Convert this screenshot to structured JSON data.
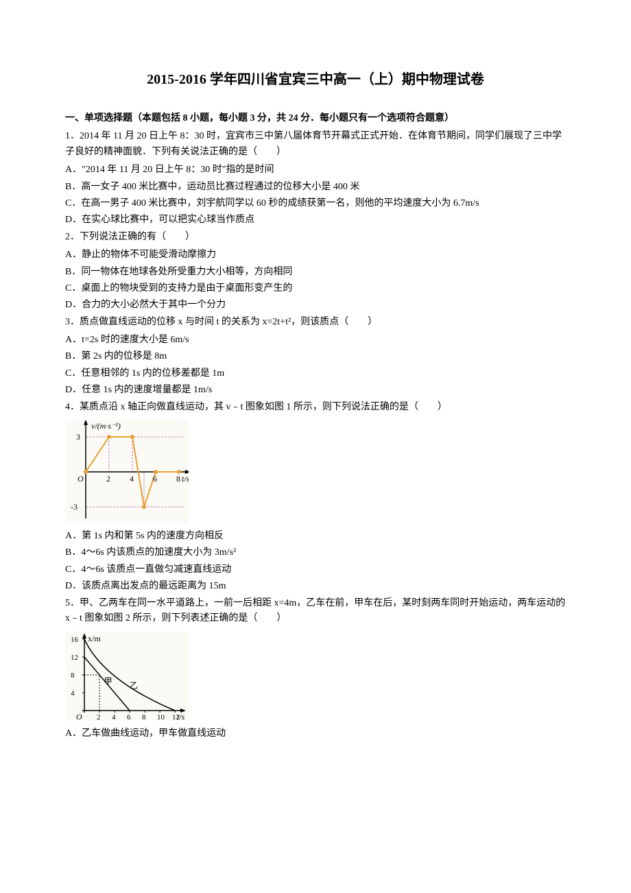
{
  "title": "2015-2016 学年四川省宜宾三中高一（上）期中物理试卷",
  "section1": {
    "header": "一、单项选择题（本题包括 8 小题，每小题 3 分，共 24 分．每小题只有一个选项符合题意）",
    "q1": {
      "text": "1．2014 年 11 月 20 日上午 8：30 时，宜宾市三中第八届体育节开幕式正式开始．在体育节期间，同学们展现了三中学子良好的精神面貌．下列有关说法正确的是（　　）",
      "a": "A．\"2014 年 11 月 20 日上午 8：30 时\"指的是时间",
      "b": "B．高一女子 400 米比赛中，运动员比赛过程通过的位移大小是 400 米",
      "c": "C．在高一男子 400 米比赛中，刘宇航同学以 60 秒的成绩获第一名，则他的平均速度大小为 6.7m/s",
      "d": "D．在实心球比赛中，可以把实心球当作质点"
    },
    "q2": {
      "text": "2．下列说法正确的有（　　）",
      "a": "A．静止的物体不可能受滑动摩擦力",
      "b": "B．同一物体在地球各处所受重力大小相等，方向相同",
      "c": "C．桌面上的物块受到的支持力是由于桌面形变产生的",
      "d": "D．合力的大小必然大于其中一个分力"
    },
    "q3": {
      "text": "3．质点做直线运动的位移 x 与时间 t 的关系为 x=2t+t²，则该质点（　　）",
      "a": "A．t=2s 时的速度大小是 6m/s",
      "b": "B．第 2s 内的位移是 8m",
      "c": "C．任意相邻的 1s 内的位移差都是 1m",
      "d": "D．任意 1s 内的速度增量都是 1m/s"
    },
    "q4": {
      "text": "4．某质点沿 x 轴正向做直线运动，其 v﹣t 图象如图 1 所示，则下列说法正确的是（　　）",
      "a": "A．第 1s 内和第 5s 内的速度方向相反",
      "b": "B．4～6s 内该质点的加速度大小为 3m/s²",
      "c": "C．4～6s 该质点一直做匀减速直线运动",
      "d": "D．该质点离出发点的最远距离为 15m"
    },
    "q5": {
      "text": "5．甲、乙两车在同一水平道路上，一前一后相距 x=4m，乙车在前，甲车在后，某时刻两车同时开始运动，两车运动的 x﹣t 图象如图 2 所示，则下列表述正确的是（　　）",
      "a": "A．乙车做曲线运动，甲车做直线运动"
    }
  },
  "chart1": {
    "ylabel": "v/(m·s⁻¹)",
    "xlabel": "t/s",
    "y_max": 3,
    "y_min": -3,
    "x_ticks": [
      2,
      4,
      6,
      8
    ],
    "y_ticks": [
      -3,
      3
    ],
    "points": [
      [
        0,
        0
      ],
      [
        2,
        3
      ],
      [
        4,
        3
      ],
      [
        5,
        -3
      ],
      [
        6,
        0
      ],
      [
        8,
        0
      ]
    ],
    "line_color": "#e8a030",
    "line_width": 2,
    "point_color": "#e8a030",
    "axis_color": "#000000",
    "grid_color": "#c080c0",
    "bg_color": "#fcfaf5",
    "width": 180,
    "height": 150
  },
  "chart2": {
    "ylabel": "x/m",
    "xlabel": "t/s",
    "y_ticks": [
      4,
      8,
      12,
      16
    ],
    "x_ticks": [
      2,
      4,
      6,
      8,
      10,
      12
    ],
    "line1_label": "甲",
    "line2_label": "乙",
    "line1_points": [
      [
        0,
        12
      ],
      [
        6,
        0
      ]
    ],
    "line2_points": [
      [
        0,
        16
      ],
      [
        2,
        8
      ],
      [
        12,
        0
      ]
    ],
    "line_color": "#000000",
    "axis_color": "#000000",
    "grid_color": "#000000",
    "bg_color": "#fcfaf5",
    "width": 180,
    "height": 130
  }
}
